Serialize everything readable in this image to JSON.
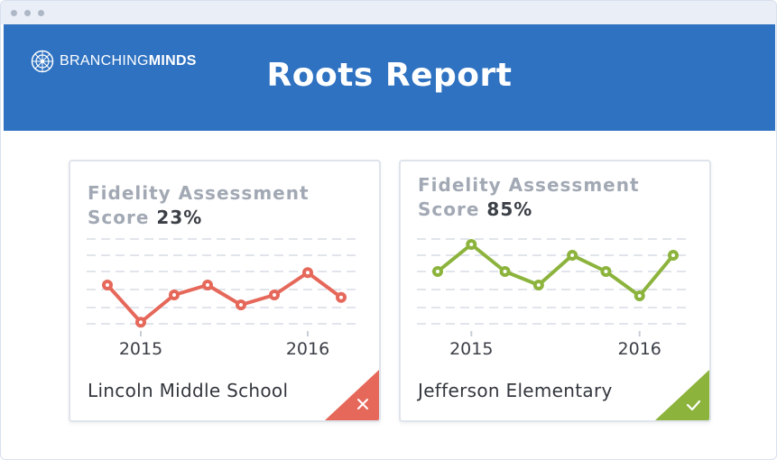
{
  "window": {
    "controls": [
      "close",
      "minimize",
      "maximize"
    ]
  },
  "header": {
    "brand_light": "BRANCHING",
    "brand_bold": "MINDS",
    "brand_icon": "branching-minds-logo-icon",
    "title": "Roots Report",
    "color": "#2f72c1"
  },
  "cards": [
    {
      "title_line1": "Fidelity Assessment",
      "title_line2": "Score",
      "score": "23%",
      "school": "Lincoln Middle School",
      "status": "fail",
      "status_icon": "x-icon",
      "color": "#e5685a",
      "chart_data": {
        "type": "line",
        "x_tick_labels": [
          "2015",
          "2016"
        ],
        "values": [
          4,
          1,
          3.2,
          4,
          2.4,
          3.2,
          5,
          3
        ],
        "ylim": [
          0,
          8
        ],
        "grid": true
      }
    },
    {
      "title_line1": "Fidelity Assessment",
      "title_line2": "Score",
      "score": "85%",
      "school": "Jefferson Elementary",
      "status": "pass",
      "status_icon": "check-icon",
      "color": "#8cb33c",
      "chart_data": {
        "type": "line",
        "x_tick_labels": [
          "2015",
          "2016"
        ],
        "values": [
          4.8,
          6.8,
          4.8,
          3.8,
          6,
          4.8,
          3,
          6
        ],
        "ylim": [
          0,
          8
        ],
        "grid": true
      }
    }
  ]
}
